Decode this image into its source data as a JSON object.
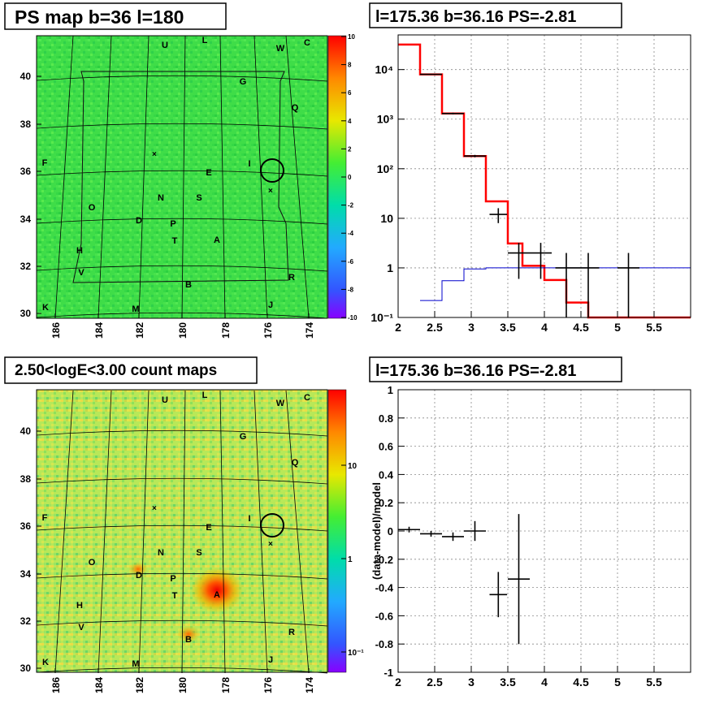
{
  "panels": {
    "tl": {
      "title": "PS map b=36 l=180"
    },
    "tr": {
      "title": "l=175.36 b=36.16 PS=-2.81"
    },
    "bl": {
      "title": "2.50<logE<3.00 count maps"
    },
    "br": {
      "title": "l=175.36 b=36.16 PS=-2.81"
    }
  },
  "maps": {
    "lat_ticks": [
      "30",
      "32",
      "34",
      "36",
      "38",
      "40"
    ],
    "lon_ticks": [
      "186",
      "184",
      "182",
      "180",
      "178",
      "176",
      "174"
    ],
    "source_letters": [
      "U",
      "L",
      "W",
      "C",
      "G",
      "Q",
      "F",
      "I",
      "E",
      "N",
      "S",
      "O",
      "D",
      "P",
      "T",
      "A",
      "H",
      "V",
      "B",
      "R",
      "K",
      "M",
      "J"
    ],
    "ps_colorbar_ticks": [
      "10",
      "8",
      "6",
      "4",
      "2",
      "0",
      "-2",
      "-4",
      "-6",
      "-8",
      "-10"
    ],
    "count_colorbar_ticks": [
      "10",
      "1",
      "10⁻¹"
    ],
    "colors": {
      "ps_background": "#3de04a",
      "count_background": "#b8e85a",
      "source_hot": "#ff1a00"
    }
  },
  "chart_data": [
    {
      "type": "line",
      "panel": "top-right spectrum",
      "title": "l=175.36 b=36.16 PS=-2.81",
      "xlim": [
        2,
        6
      ],
      "ylim": [
        0.1,
        50000
      ],
      "yscale": "log",
      "grid": true,
      "xticks": [
        "2",
        "2.5",
        "3",
        "3.5",
        "4",
        "4.5",
        "5",
        "5.5"
      ],
      "yticks": [
        "10⁻¹",
        "1",
        "10",
        "10²",
        "10³",
        "10⁴"
      ],
      "series": [
        {
          "kind": "step",
          "color": "#ff0000",
          "x_edges": [
            2.0,
            2.3,
            2.6,
            2.9,
            3.2,
            3.5,
            3.7,
            4.0,
            4.3,
            4.6,
            6.0
          ],
          "values": [
            32000,
            8000,
            1300,
            180,
            22,
            3.1,
            1.1,
            0.57,
            0.2,
            0.1
          ]
        },
        {
          "kind": "step",
          "color": "#0000cc",
          "x_edges": [
            2.3,
            2.6,
            2.9,
            3.2,
            3.5,
            3.7,
            4.0,
            6.0
          ],
          "values": [
            0.22,
            0.55,
            0.95,
            1.0,
            1.0,
            1.0,
            1.0
          ]
        },
        {
          "kind": "errorbars",
          "color": "#000000",
          "points": [
            {
              "x": 2.45,
              "xerr": 0.15,
              "y": 8000,
              "ylo": 7800,
              "yhi": 8200
            },
            {
              "x": 2.75,
              "xerr": 0.15,
              "y": 1300,
              "ylo": 1250,
              "yhi": 1350
            },
            {
              "x": 3.05,
              "xerr": 0.15,
              "y": 180,
              "ylo": 170,
              "yhi": 190
            },
            {
              "x": 3.37,
              "xerr": 0.12,
              "y": 12,
              "ylo": 8,
              "yhi": 16
            },
            {
              "x": 3.65,
              "xerr": 0.15,
              "y": 2,
              "ylo": 0.6,
              "yhi": 3.2
            },
            {
              "x": 3.95,
              "xerr": 0.15,
              "y": 2,
              "ylo": 0.6,
              "yhi": 3.2
            },
            {
              "x": 4.3,
              "xerr": 0.15,
              "y": 1,
              "ylo": 0.1,
              "yhi": 2
            },
            {
              "x": 4.6,
              "xerr": 0.15,
              "y": 1,
              "ylo": 0.1,
              "yhi": 2
            },
            {
              "x": 5.15,
              "xerr": 0.15,
              "y": 1,
              "ylo": 0.1,
              "yhi": 2
            }
          ]
        }
      ]
    },
    {
      "type": "scatter",
      "panel": "bottom-right residuals",
      "title": "l=175.36 b=36.16 PS=-2.81",
      "ylabel": "(data-model)/model",
      "xlim": [
        2,
        6
      ],
      "ylim": [
        -1,
        1
      ],
      "grid": true,
      "xticks": [
        "2",
        "2.5",
        "3",
        "3.5",
        "4",
        "4.5",
        "5",
        "5.5"
      ],
      "yticks": [
        "-1",
        "-0.8",
        "-0.6",
        "-0.4",
        "-0.2",
        "0",
        "0.2",
        "0.4",
        "0.6",
        "0.8",
        "1"
      ],
      "points": [
        {
          "x": 2.15,
          "xerr": 0.15,
          "y": 0.01,
          "yerr": 0.02
        },
        {
          "x": 2.45,
          "xerr": 0.15,
          "y": -0.02,
          "yerr": 0.02
        },
        {
          "x": 2.75,
          "xerr": 0.15,
          "y": -0.04,
          "yerr": 0.03
        },
        {
          "x": 3.05,
          "xerr": 0.15,
          "y": 0.0,
          "yerr": 0.07
        },
        {
          "x": 3.37,
          "xerr": 0.12,
          "y": -0.45,
          "yerr": 0.16
        },
        {
          "x": 3.65,
          "xerr": 0.15,
          "y": -0.34,
          "yerr": 0.46
        }
      ]
    }
  ]
}
